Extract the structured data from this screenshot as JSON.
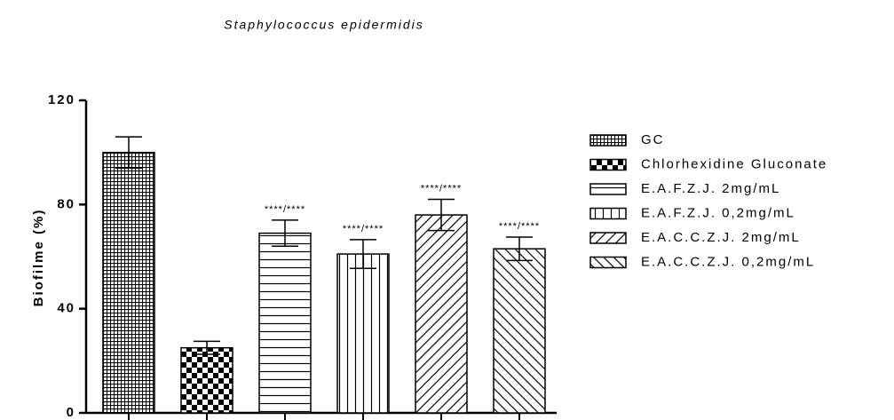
{
  "chart_data": {
    "type": "bar",
    "title": "Staphylococcus epidermidis",
    "ylabel": "Biofilme (%)",
    "categories": [
      "GC",
      "Chlorhexidine Gluconate",
      "E.A.F.Z.J. 2mg/mL",
      "E.A.F.Z.J. 0,2mg/mL",
      "E.A.C.C.Z.J. 2mg/mL",
      "E.A.C.C.Z.J. 0,2mg/mL"
    ],
    "values": [
      100,
      25,
      69,
      61,
      76,
      63
    ],
    "errors": [
      6,
      2.5,
      5,
      5.5,
      6,
      4.5
    ],
    "annotations": [
      null,
      null,
      "****/****",
      "****/****",
      "****/****",
      "****/****"
    ],
    "patterns": [
      "crosshatch",
      "checker",
      "horizontal",
      "vertical",
      "diagonal-up",
      "diagonal-down"
    ],
    "color": "#000000",
    "ylim": [
      0,
      120
    ],
    "yticks": [
      0,
      40,
      80,
      120
    ],
    "legend": "right"
  }
}
